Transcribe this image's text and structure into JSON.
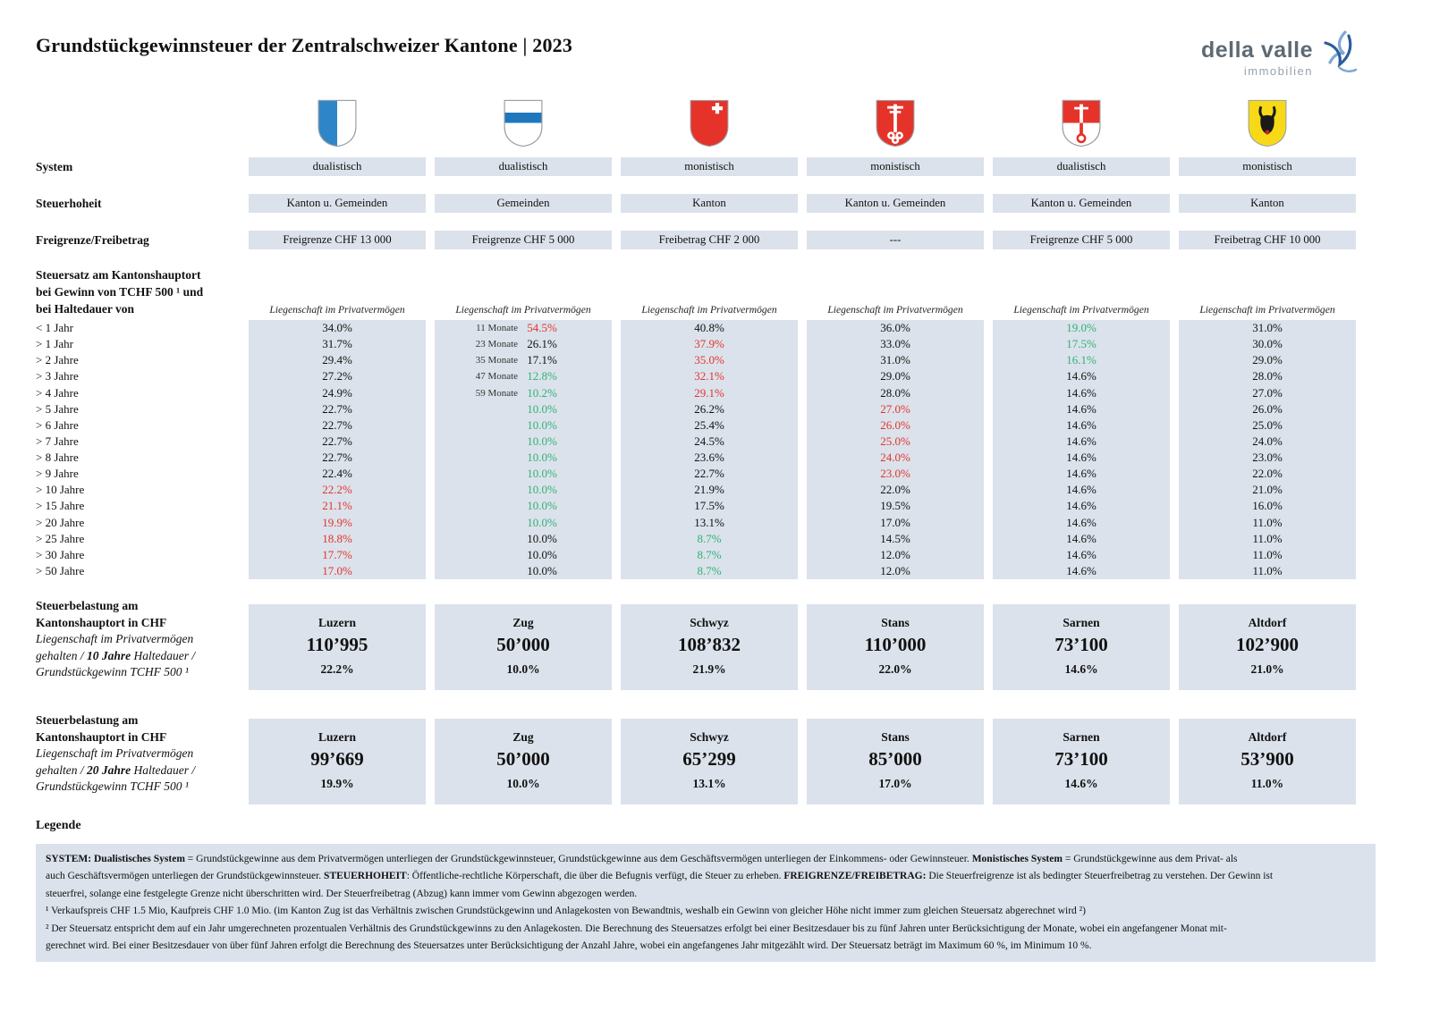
{
  "header": {
    "title": "Grundstückgewinnsteuer der Zentralschweizer Kantone  |  2023",
    "logo": {
      "name": "della valle",
      "sub": "immobilien"
    }
  },
  "colors": {
    "red": "#e2342c",
    "green": "#2fb277",
    "cell_bg": "#dbe2eb",
    "text": "#111111",
    "logo_gray": "#5d6a74",
    "logo_light_gray": "#98a2ac",
    "logo_blue_dark": "#2b5d9b",
    "logo_blue_light": "#7fa8d4",
    "flag_colors": {
      "white": "#ffffff",
      "red": "#e5332a",
      "luzern_blue": "#2e86c8",
      "zug_blue": "#1f78be",
      "uri_yellow": "#f7d917",
      "black": "#1a1a1a"
    }
  },
  "row_labels": {
    "system": "System",
    "steuerhoheit": "Steuerhoheit",
    "freigrenze": "Freigrenze/Freibetrag"
  },
  "rate_section": {
    "heading_lines": [
      "Steuersatz am Kantonshauptort",
      "bei Gewinn von TCHF 500 ¹ und",
      "bei Haltedauer von"
    ],
    "column_header": "Liegenschaft im Privatvermögen",
    "duration_labels": [
      "< 1 Jahr",
      "> 1 Jahr",
      "> 2 Jahre",
      "> 3 Jahre",
      "> 4 Jahre",
      "> 5 Jahre",
      "> 6 Jahre",
      "> 7 Jahre",
      "> 8 Jahre",
      "> 9 Jahre",
      "> 10 Jahre",
      "> 15 Jahre",
      "> 20 Jahre",
      "> 25 Jahre",
      "> 30 Jahre",
      "> 50 Jahre"
    ]
  },
  "burden_sections": [
    {
      "bold_lines": [
        "Steuerbelastung am",
        "Kantonshauptort in CHF"
      ],
      "italic_lines": [
        [
          {
            "t": "Liegenschaft im Privatvermögen"
          }
        ],
        [
          {
            "t": "gehalten / "
          },
          {
            "t": "10 Jahre",
            "b": true
          },
          {
            "t": "  Haltedauer /"
          }
        ],
        [
          {
            "t": "Grundstückgewinn TCHF 500 ¹"
          }
        ]
      ]
    },
    {
      "bold_lines": [
        "Steuerbelastung am",
        "Kantonshauptort in CHF"
      ],
      "italic_lines": [
        [
          {
            "t": "Liegenschaft im Privatvermögen"
          }
        ],
        [
          {
            "t": "gehalten / "
          },
          {
            "t": "20 Jahre",
            "b": true
          },
          {
            "t": "  Haltedauer /"
          }
        ],
        [
          {
            "t": "Grundstückgewinn TCHF 500 ¹"
          }
        ]
      ]
    }
  ],
  "cantons": [
    {
      "coat": "luzern",
      "capital": "Luzern",
      "system": "dualistisch",
      "steuerhoheit": "Kanton u. Gemeinden",
      "freigrenze": "Freigrenze CHF 13 000",
      "rates": [
        {
          "v": "34.0%"
        },
        {
          "v": "31.7%"
        },
        {
          "v": "29.4%"
        },
        {
          "v": "27.2%"
        },
        {
          "v": "24.9%"
        },
        {
          "v": "22.7%"
        },
        {
          "v": "22.7%"
        },
        {
          "v": "22.7%"
        },
        {
          "v": "22.7%"
        },
        {
          "v": "22.4%"
        },
        {
          "v": "22.2%",
          "c": "r"
        },
        {
          "v": "21.1%",
          "c": "r"
        },
        {
          "v": "19.9%",
          "c": "r"
        },
        {
          "v": "18.8%",
          "c": "r"
        },
        {
          "v": "17.7%",
          "c": "r"
        },
        {
          "v": "17.0%",
          "c": "r"
        }
      ],
      "burden": [
        {
          "amount": "110’995",
          "pct": "22.2%"
        },
        {
          "amount": "99’669",
          "pct": "19.9%"
        }
      ]
    },
    {
      "coat": "zug",
      "capital": "Zug",
      "indent": true,
      "system": "dualistisch",
      "steuerhoheit": "Gemeinden",
      "freigrenze": "Freigrenze CHF 5 000",
      "rates": [
        {
          "v": "54.5%",
          "c": "r",
          "m": "11 Monate"
        },
        {
          "v": "26.1%",
          "m": "23 Monate"
        },
        {
          "v": "17.1%",
          "m": "35 Monate"
        },
        {
          "v": "12.8%",
          "c": "g",
          "m": "47 Monate"
        },
        {
          "v": "10.2%",
          "c": "g",
          "m": "59 Monate"
        },
        {
          "v": "10.0%",
          "c": "g"
        },
        {
          "v": "10.0%",
          "c": "g"
        },
        {
          "v": "10.0%",
          "c": "g"
        },
        {
          "v": "10.0%",
          "c": "g"
        },
        {
          "v": "10.0%",
          "c": "g"
        },
        {
          "v": "10.0%",
          "c": "g"
        },
        {
          "v": "10.0%",
          "c": "g"
        },
        {
          "v": "10.0%",
          "c": "g"
        },
        {
          "v": "10.0%"
        },
        {
          "v": "10.0%"
        },
        {
          "v": "10.0%"
        }
      ],
      "burden": [
        {
          "amount": "50’000",
          "pct": "10.0%"
        },
        {
          "amount": "50’000",
          "pct": "10.0%"
        }
      ]
    },
    {
      "coat": "schwyz",
      "capital": "Schwyz",
      "system": "monistisch",
      "steuerhoheit": "Kanton",
      "freigrenze": "Freibetrag CHF 2 000",
      "rates": [
        {
          "v": "40.8%"
        },
        {
          "v": "37.9%",
          "c": "r"
        },
        {
          "v": "35.0%",
          "c": "r"
        },
        {
          "v": "32.1%",
          "c": "r"
        },
        {
          "v": "29.1%",
          "c": "r"
        },
        {
          "v": "26.2%"
        },
        {
          "v": "25.4%"
        },
        {
          "v": "24.5%"
        },
        {
          "v": "23.6%"
        },
        {
          "v": "22.7%"
        },
        {
          "v": "21.9%"
        },
        {
          "v": "17.5%"
        },
        {
          "v": "13.1%"
        },
        {
          "v": "8.7%",
          "c": "g"
        },
        {
          "v": "8.7%",
          "c": "g"
        },
        {
          "v": "8.7%",
          "c": "g"
        }
      ],
      "burden": [
        {
          "amount": "108’832",
          "pct": "21.9%"
        },
        {
          "amount": "65’299",
          "pct": "13.1%"
        }
      ]
    },
    {
      "coat": "nidwalden",
      "capital": "Stans",
      "system": "monistisch",
      "steuerhoheit": "Kanton u. Gemeinden",
      "freigrenze": "---",
      "rates": [
        {
          "v": "36.0%"
        },
        {
          "v": "33.0%"
        },
        {
          "v": "31.0%"
        },
        {
          "v": "29.0%"
        },
        {
          "v": "28.0%"
        },
        {
          "v": "27.0%",
          "c": "r"
        },
        {
          "v": "26.0%",
          "c": "r"
        },
        {
          "v": "25.0%",
          "c": "r"
        },
        {
          "v": "24.0%",
          "c": "r"
        },
        {
          "v": "23.0%",
          "c": "r"
        },
        {
          "v": "22.0%"
        },
        {
          "v": "19.5%"
        },
        {
          "v": "17.0%"
        },
        {
          "v": "14.5%"
        },
        {
          "v": "12.0%"
        },
        {
          "v": "12.0%"
        }
      ],
      "burden": [
        {
          "amount": "110’000",
          "pct": "22.0%"
        },
        {
          "amount": "85’000",
          "pct": "17.0%"
        }
      ]
    },
    {
      "coat": "obwalden",
      "capital": "Sarnen",
      "system": "dualistisch",
      "steuerhoheit": "Kanton u. Gemeinden",
      "freigrenze": "Freigrenze CHF 5 000",
      "rates": [
        {
          "v": "19.0%",
          "c": "g"
        },
        {
          "v": "17.5%",
          "c": "g"
        },
        {
          "v": "16.1%",
          "c": "g"
        },
        {
          "v": "14.6%"
        },
        {
          "v": "14.6%"
        },
        {
          "v": "14.6%"
        },
        {
          "v": "14.6%"
        },
        {
          "v": "14.6%"
        },
        {
          "v": "14.6%"
        },
        {
          "v": "14.6%"
        },
        {
          "v": "14.6%"
        },
        {
          "v": "14.6%"
        },
        {
          "v": "14.6%"
        },
        {
          "v": "14.6%"
        },
        {
          "v": "14.6%"
        },
        {
          "v": "14.6%"
        }
      ],
      "burden": [
        {
          "amount": "73’100",
          "pct": "14.6%"
        },
        {
          "amount": "73’100",
          "pct": "14.6%"
        }
      ]
    },
    {
      "coat": "uri",
      "capital": "Altdorf",
      "system": "monistisch",
      "steuerhoheit": "Kanton",
      "freigrenze": "Freibetrag CHF 10 000",
      "rates": [
        {
          "v": "31.0%"
        },
        {
          "v": "30.0%"
        },
        {
          "v": "29.0%"
        },
        {
          "v": "28.0%"
        },
        {
          "v": "27.0%"
        },
        {
          "v": "26.0%"
        },
        {
          "v": "25.0%"
        },
        {
          "v": "24.0%"
        },
        {
          "v": "23.0%"
        },
        {
          "v": "22.0%"
        },
        {
          "v": "21.0%"
        },
        {
          "v": "16.0%"
        },
        {
          "v": "11.0%"
        },
        {
          "v": "11.0%"
        },
        {
          "v": "11.0%"
        },
        {
          "v": "11.0%"
        }
      ],
      "burden": [
        {
          "amount": "102’900",
          "pct": "21.0%"
        },
        {
          "amount": "53’900",
          "pct": "11.0%"
        }
      ]
    }
  ],
  "legend": {
    "title": "Legende",
    "lines": [
      [
        {
          "t": "SYSTEM: Dualistisches System",
          "b": true
        },
        {
          "t": " = Grundstückgewinne aus dem Privatvermögen unterliegen der Grundstückgewinnsteuer, Grundstückgewinne aus dem Geschäftsvermögen unterliegen der Einkommens- oder Gewinnsteuer. "
        },
        {
          "t": "Monistisches System",
          "b": true
        },
        {
          "t": " = Grundstückgewinne aus dem Privat- als"
        }
      ],
      [
        {
          "t": "auch Geschäftsvermögen unterliegen der Grundstückgewinnsteuer.   "
        },
        {
          "t": "STEUERHOHEIT",
          "b": true
        },
        {
          "t": ": Öffentliche-rechtliche Körperschaft, die über die Befugnis verfügt, die Steuer zu erheben.   "
        },
        {
          "t": "FREIGRENZE/FREIBETRAG:",
          "b": true
        },
        {
          "t": " Die Steuerfreigrenze ist als bedingter Steuerfreibetrag zu verstehen. Der Gewinn ist"
        }
      ],
      [
        {
          "t": " steuerfrei, solange eine festgelegte Grenze nicht überschritten wird. Der Steuerfreibetrag (Abzug) kann immer vom Gewinn abgezogen werden."
        }
      ],
      [
        {
          "t": "¹ Verkaufspreis CHF 1.5 Mio, Kaufpreis CHF 1.0 Mio. (im Kanton Zug ist das Verhältnis zwischen Grundstückgewinn und Anlagekosten von Bewandtnis, weshalb ein Gewinn von gleicher Höhe nicht immer zum gleichen Steuersatz abgerechnet wird ²)"
        }
      ],
      [
        {
          "t": "² Der Steuersatz entspricht dem auf ein Jahr umgerechneten prozentualen Verhältnis des Grundstückgewinns zu den Anlagekosten. Die Berechnung des Steuersatzes erfolgt bei einer Besitzesdauer bis zu fünf Jahren unter Berücksichtigung der Monate, wobei ein angefangener Monat mit-"
        }
      ],
      [
        {
          "t": "gerechnet wird. Bei einer Besitzesdauer von über fünf Jahren erfolgt die Berechnung des Steuersatzes unter Berücksichtigung der Anzahl Jahre, wobei ein angefangenes Jahr mitgezählt wird. Der Steuersatz beträgt im Maximum 60 %, im Minimum 10 %."
        }
      ]
    ]
  }
}
